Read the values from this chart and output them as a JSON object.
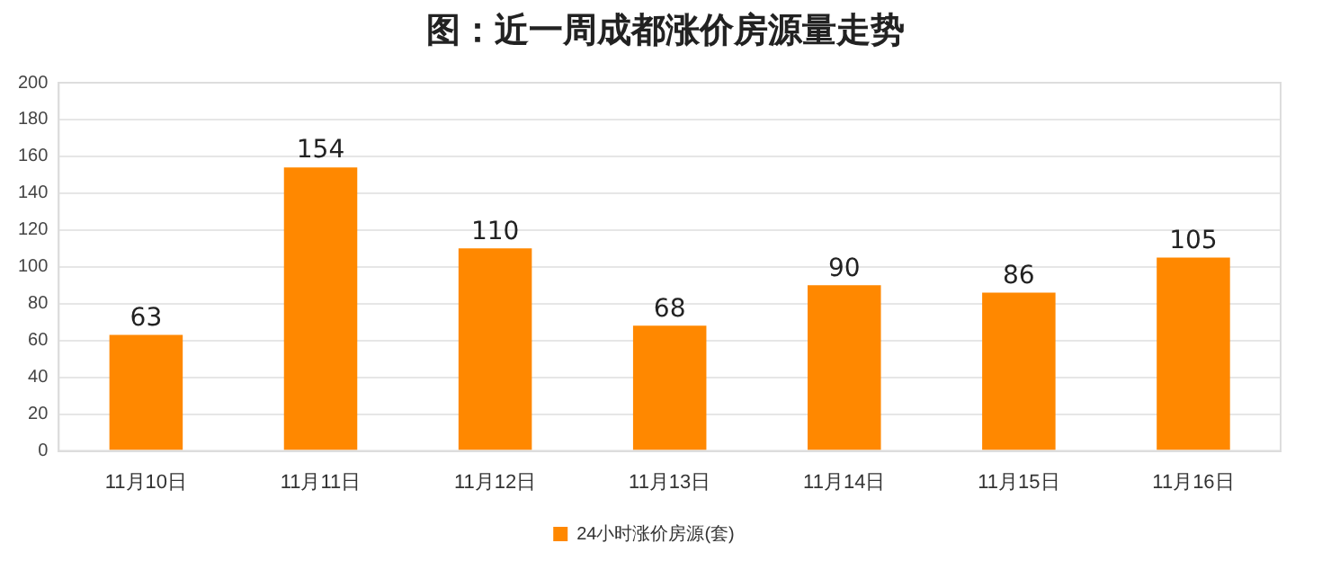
{
  "chart_data": {
    "type": "bar",
    "title": "图：近一周成都涨价房源量走势",
    "categories": [
      "11月10日",
      "11月11日",
      "11月12日",
      "11月13日",
      "11月14日",
      "11月15日",
      "11月16日"
    ],
    "series": [
      {
        "name": "24小时涨价房源(套)",
        "color": "#ff8800",
        "values": [
          63,
          154,
          110,
          68,
          90,
          86,
          105
        ]
      }
    ],
    "ylim": [
      0,
      200
    ],
    "yticks": [
      0,
      20,
      40,
      60,
      80,
      100,
      120,
      140,
      160,
      180,
      200
    ],
    "grid": "y",
    "legend": "bottom",
    "data_labels": true
  }
}
